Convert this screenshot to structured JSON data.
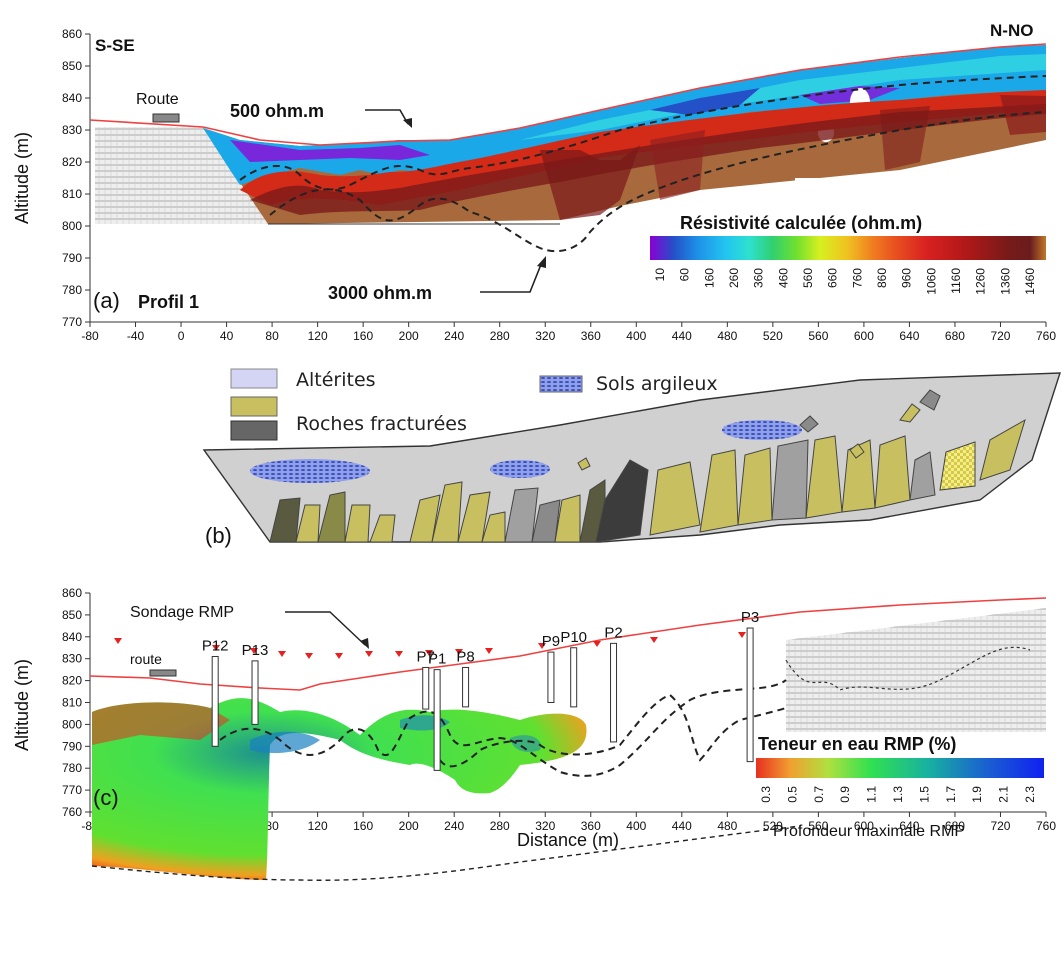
{
  "panel_a": {
    "tag": "(a)",
    "profile": "Profil 1",
    "dir_left": "S-SE",
    "dir_right": "N-NO",
    "road": "Route",
    "iso_500": "500 ohm.m",
    "iso_3000": "3000 ohm.m",
    "y_title": "Altitude (m)",
    "cbar_title": "Résistivité calculée (ohm.m)",
    "cbar_ticks": [
      "10",
      "60",
      "160",
      "260",
      "360",
      "460",
      "560",
      "660",
      "760",
      "860",
      "960",
      "1060",
      "1160",
      "1260",
      "1360",
      "1460"
    ],
    "cbar_colors": [
      "#8a00d4",
      "#2450c8",
      "#1e90e8",
      "#22c4f0",
      "#2ee0d0",
      "#30d070",
      "#70e030",
      "#d8f020",
      "#f0d020",
      "#f0a020",
      "#f07020",
      "#e84020",
      "#d82020",
      "#b01818",
      "#8a1818",
      "#6a1c1c",
      "#c0782a"
    ]
  },
  "panel_b": {
    "tag": "(b)",
    "legend": {
      "alterites": "Altérites",
      "sols": "Sols argileux",
      "roches_fract": "Roches fracturées",
      "roches": "",
      "roches2": "Roches fracturées"
    },
    "legend_items": [
      "Altérites",
      "Roches fracturées",
      "Sols argileux"
    ]
  },
  "panel_c": {
    "tag": "(c)",
    "road": "route",
    "sondage": "Sondage RMP",
    "y_title": "Altitude (m)",
    "x_title": "Distance (m)",
    "cbar_title": "Teneur en eau RMP  (%)",
    "cbar_ticks": [
      "0.3",
      "0.5",
      "0.7",
      "0.9",
      "1.1",
      "1.3",
      "1.5",
      "1.7",
      "1.9",
      "2.1",
      "2.3"
    ],
    "max_depth": "Profondeur maximale RMP",
    "wells": [
      {
        "name": "P12",
        "x": 30,
        "top": 831,
        "bottom": 790
      },
      {
        "name": "P13",
        "x": 65,
        "top": 829,
        "bottom": 800
      },
      {
        "name": "P7",
        "x": 215,
        "top": 826,
        "bottom": 807
      },
      {
        "name": "P1",
        "x": 225,
        "top": 825,
        "bottom": 779
      },
      {
        "name": "P8",
        "x": 250,
        "top": 826,
        "bottom": 808
      },
      {
        "name": "P9",
        "x": 325,
        "top": 833,
        "bottom": 810
      },
      {
        "name": "P10",
        "x": 345,
        "top": 835,
        "bottom": 808
      },
      {
        "name": "P2",
        "x": 380,
        "top": 837,
        "bottom": 792
      },
      {
        "name": "P3",
        "x": 500,
        "top": 844,
        "bottom": 783
      }
    ]
  },
  "chart_data": [
    {
      "type": "heatmap",
      "title": "",
      "xlabel": "",
      "ylabel": "Altitude (m)",
      "xlim": [
        -80,
        760
      ],
      "ylim": [
        770,
        860
      ],
      "x_ticks": [
        -80,
        -40,
        0,
        40,
        80,
        120,
        160,
        200,
        240,
        280,
        320,
        360,
        400,
        440,
        480,
        520,
        560,
        600,
        640,
        680,
        720,
        760
      ],
      "y_ticks": [
        770,
        780,
        790,
        800,
        810,
        820,
        830,
        840,
        850,
        860
      ],
      "colorbar_label": "Résistivité calculée (ohm.m)",
      "colorbar_ticks": [
        10,
        60,
        160,
        260,
        360,
        460,
        560,
        660,
        760,
        860,
        960,
        1060,
        1160,
        1260,
        1360,
        1460
      ]
    },
    {
      "type": "heatmap",
      "title": "",
      "xlabel": "Distance (m)",
      "ylabel": "Altitude (m)",
      "xlim": [
        -80,
        760
      ],
      "ylim": [
        760,
        860
      ],
      "x_ticks": [
        -80,
        -40,
        0,
        40,
        80,
        120,
        160,
        200,
        240,
        280,
        320,
        360,
        400,
        440,
        480,
        520,
        560,
        600,
        640,
        680,
        720,
        760
      ],
      "y_ticks": [
        760,
        770,
        780,
        790,
        800,
        810,
        820,
        830,
        840,
        850,
        860
      ],
      "colorbar_label": "Teneur en eau RMP  (%)",
      "colorbar_ticks": [
        0.3,
        0.5,
        0.7,
        0.9,
        1.1,
        1.3,
        1.5,
        1.7,
        1.9,
        2.1,
        2.3
      ]
    }
  ]
}
